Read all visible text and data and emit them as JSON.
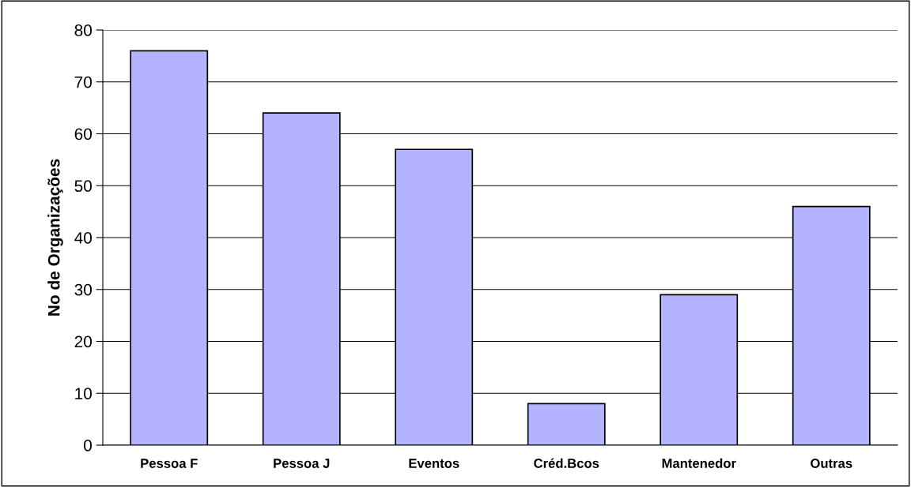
{
  "chart_data": {
    "type": "bar",
    "ylabel": "No de Organizações",
    "categories": [
      "Pessoa F",
      "Pessoa J",
      "Eventos",
      "Créd.Bcos",
      "Mantenedor",
      "Outras"
    ],
    "values": [
      76,
      64,
      57,
      8,
      29,
      46
    ],
    "color": "#b3b3ff",
    "ylim": [
      0,
      80
    ],
    "yticks": [
      0,
      10,
      20,
      30,
      40,
      50,
      60,
      70,
      80
    ],
    "grid": "y",
    "legend": false
  }
}
